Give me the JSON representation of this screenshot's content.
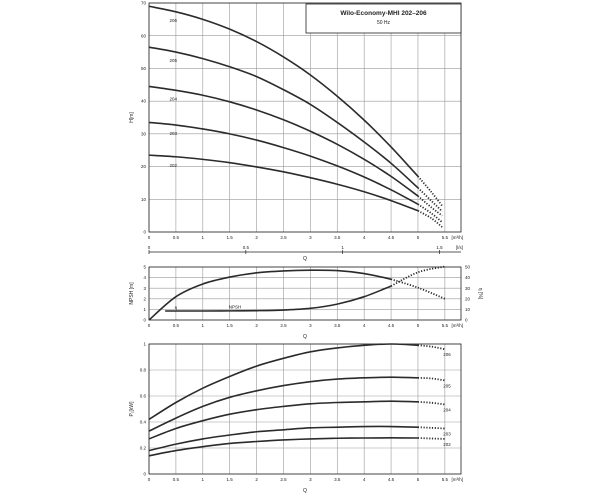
{
  "chart_data": [
    {
      "type": "line",
      "title": "Wilo-Economy-MHI 202–206",
      "subtitle": "50 Hz",
      "ylabel": "H[m]",
      "xlabel": "Q",
      "x_unit": "[m³/h]",
      "x2_unit": "[l/s]",
      "xlim": [
        0,
        5.8
      ],
      "ylim": [
        0,
        70
      ],
      "x_ticks": [
        "0",
        "0.5",
        "1",
        "1.5",
        "2",
        "2.5",
        "3",
        "3.5",
        "4",
        "4.5",
        "5",
        "5.5"
      ],
      "y_ticks": [
        "0",
        "10",
        "20",
        "30",
        "40",
        "50",
        "60",
        "70"
      ],
      "x2_ticks": [
        "0",
        "0.5",
        "1",
        "1.5"
      ],
      "x2_values": [
        0,
        0.5,
        1,
        1.5
      ],
      "grid": true,
      "series": [
        {
          "name": "206",
          "x": [
            0,
            0.5,
            1,
            1.5,
            2,
            2.5,
            3,
            3.5,
            4,
            4.5,
            5
          ],
          "values": [
            69,
            67.3,
            65,
            62,
            58.2,
            53.5,
            48,
            41.5,
            34.2,
            26,
            17
          ],
          "ext_x": [
            5,
            5.25,
            5.45
          ],
          "ext_values": [
            17,
            12.2,
            8
          ]
        },
        {
          "name": "205",
          "x": [
            0,
            0.5,
            1,
            1.5,
            2,
            2.5,
            3,
            3.5,
            4,
            4.5,
            5
          ],
          "values": [
            56.5,
            55,
            53,
            50.5,
            47.5,
            43.5,
            39,
            33.5,
            27.5,
            21,
            13.5
          ],
          "ext_x": [
            5,
            5.25,
            5.45
          ],
          "ext_values": [
            13.5,
            9.5,
            6.3
          ]
        },
        {
          "name": "204",
          "x": [
            0,
            0.5,
            1,
            1.5,
            2,
            2.5,
            3,
            3.5,
            4,
            4.5,
            5
          ],
          "values": [
            44.5,
            43.3,
            41.8,
            39.8,
            37.3,
            34.3,
            30.8,
            26.8,
            22.2,
            17,
            11
          ],
          "ext_x": [
            5,
            5.25,
            5.45
          ],
          "ext_values": [
            11,
            7.5,
            5
          ]
        },
        {
          "name": "203",
          "x": [
            0,
            0.5,
            1,
            1.5,
            2,
            2.5,
            3,
            3.5,
            4,
            4.5,
            5
          ],
          "values": [
            33.5,
            32.7,
            31.5,
            30,
            28.1,
            25.8,
            23.2,
            20.2,
            16.8,
            12.9,
            8.5
          ],
          "ext_x": [
            5,
            5.25,
            5.45
          ],
          "ext_values": [
            8.5,
            5.7,
            3
          ]
        },
        {
          "name": "202",
          "x": [
            0,
            0.5,
            1,
            1.5,
            2,
            2.5,
            3,
            3.5,
            4,
            4.5,
            5
          ],
          "values": [
            23.5,
            23,
            22.2,
            21.2,
            19.9,
            18.4,
            16.6,
            14.6,
            12.3,
            9.6,
            6.5
          ],
          "ext_x": [
            5,
            5.25,
            5.45
          ],
          "ext_values": [
            6.5,
            4.2,
            1.5
          ]
        }
      ]
    },
    {
      "type": "line",
      "ylabel": "NPSH [m]",
      "y2label": "η [%]",
      "xlabel": "Q",
      "x_unit": "[m³/h]",
      "xlim": [
        0,
        5.8
      ],
      "ylim": [
        0,
        5
      ],
      "y2lim": [
        0,
        50
      ],
      "x_ticks": [
        "0",
        "0.5",
        "1",
        "1.5",
        "2",
        "2.5",
        "3",
        "3.5",
        "4",
        "4.5",
        "5",
        "5.5"
      ],
      "y_ticks": [
        "0",
        "1",
        "2",
        "3",
        "4",
        "5"
      ],
      "y2_ticks": [
        "0",
        "10",
        "20",
        "30",
        "40",
        "50"
      ],
      "grid": true,
      "series": [
        {
          "name": "η",
          "axis": "y2",
          "x": [
            0,
            0.5,
            1,
            1.5,
            2,
            2.5,
            3,
            3.5,
            4,
            4.5
          ],
          "values": [
            0,
            22,
            34,
            40.5,
            44.5,
            46.3,
            47,
            46.6,
            43.8,
            38.5
          ],
          "ext_x": [
            4.5,
            5,
            5.5
          ],
          "ext_values": [
            38.5,
            30.5,
            20
          ]
        },
        {
          "name": "NPSH",
          "axis": "y",
          "x": [
            0.3,
            1,
            1.5,
            2,
            2.5,
            3,
            3.5,
            4,
            4.5
          ],
          "values": [
            0.85,
            0.85,
            0.86,
            0.88,
            0.94,
            1.1,
            1.5,
            2.2,
            3.2
          ],
          "ext_x": [
            4.5,
            5,
            5.5
          ],
          "ext_values": [
            3.2,
            4.5,
            6
          ]
        }
      ]
    },
    {
      "type": "line",
      "ylabel": "P₁[kW]",
      "xlabel": "Q",
      "x_unit": "[m³/h]",
      "xlim": [
        0,
        5.8
      ],
      "ylim": [
        0,
        1
      ],
      "x_ticks": [
        "0",
        "0.5",
        "1",
        "1.5",
        "2",
        "2.5",
        "3",
        "3.5",
        "4",
        "4.5",
        "5",
        "5.5"
      ],
      "y_ticks": [
        "0",
        "0.2",
        "0.4",
        "0.6",
        "0.8",
        "1"
      ],
      "grid": true,
      "series": [
        {
          "name": "206",
          "x": [
            0,
            0.5,
            1,
            1.5,
            2,
            2.5,
            3,
            3.5,
            4,
            4.5,
            5
          ],
          "values": [
            0.42,
            0.55,
            0.66,
            0.75,
            0.83,
            0.89,
            0.94,
            0.97,
            0.99,
            1.0,
            0.99
          ],
          "ext_x": [
            5,
            5.25,
            5.5
          ],
          "ext_values": [
            0.99,
            0.98,
            0.96
          ]
        },
        {
          "name": "205",
          "x": [
            0,
            0.5,
            1,
            1.5,
            2,
            2.5,
            3,
            3.5,
            4,
            4.5,
            5
          ],
          "values": [
            0.33,
            0.43,
            0.52,
            0.59,
            0.64,
            0.68,
            0.71,
            0.73,
            0.74,
            0.745,
            0.74
          ],
          "ext_x": [
            5,
            5.25,
            5.5
          ],
          "ext_values": [
            0.74,
            0.735,
            0.72
          ]
        },
        {
          "name": "204",
          "x": [
            0,
            0.5,
            1,
            1.5,
            2,
            2.5,
            3,
            3.5,
            4,
            4.5,
            5
          ],
          "values": [
            0.27,
            0.35,
            0.41,
            0.46,
            0.495,
            0.52,
            0.54,
            0.55,
            0.555,
            0.56,
            0.555
          ],
          "ext_x": [
            5,
            5.25,
            5.5
          ],
          "ext_values": [
            0.555,
            0.548,
            0.535
          ]
        },
        {
          "name": "203",
          "x": [
            0,
            0.5,
            1,
            1.5,
            2,
            2.5,
            3,
            3.5,
            4,
            4.5,
            5
          ],
          "values": [
            0.18,
            0.23,
            0.27,
            0.3,
            0.325,
            0.34,
            0.355,
            0.36,
            0.365,
            0.365,
            0.36
          ],
          "ext_x": [
            5,
            5.25,
            5.5
          ],
          "ext_values": [
            0.36,
            0.355,
            0.35
          ]
        },
        {
          "name": "202",
          "x": [
            0,
            0.5,
            1,
            1.5,
            2,
            2.5,
            3,
            3.5,
            4,
            4.5,
            5
          ],
          "values": [
            0.14,
            0.18,
            0.21,
            0.235,
            0.25,
            0.262,
            0.27,
            0.275,
            0.277,
            0.278,
            0.277
          ],
          "ext_x": [
            5,
            5.25,
            5.5
          ],
          "ext_values": [
            0.277,
            0.273,
            0.27
          ]
        }
      ]
    }
  ]
}
